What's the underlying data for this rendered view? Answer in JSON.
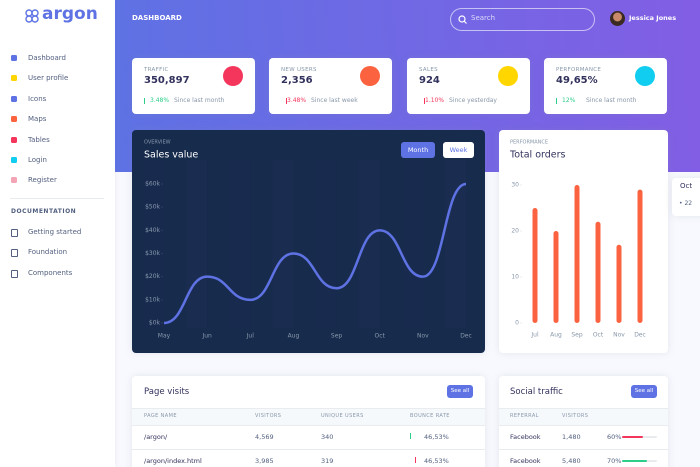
{
  "sidebar": {
    "brand": "argon",
    "nav": [
      "Dashboard",
      "User profile",
      "Icons",
      "Maps",
      "Tables",
      "Login",
      "Register"
    ],
    "section": "DOCUMENTATION",
    "docs": [
      "Getting started",
      "Foundation",
      "Components"
    ]
  },
  "header": {
    "title": "DASHBOARD",
    "search_placeholder": "Search",
    "user": "Jessica Jones"
  },
  "stats": [
    {
      "label": "TRAFFIC",
      "value": "350,897",
      "change": "3.48%",
      "period": "Since last month"
    },
    {
      "label": "NEW USERS",
      "value": "2,356",
      "change": "3.48%",
      "period": "Since last week"
    },
    {
      "label": "SALES",
      "value": "924",
      "change": "1.10%",
      "period": "Since yesterday"
    },
    {
      "label": "PERFORMANCE",
      "value": "49,65%",
      "change": "12%",
      "period": "Since last month"
    }
  ],
  "chart_data": [
    {
      "type": "line",
      "overline": "OVERVIEW",
      "title": "Sales value",
      "buttons": [
        "Month",
        "Week"
      ],
      "categories": [
        "May",
        "Jun",
        "Jul",
        "Aug",
        "Sep",
        "Oct",
        "Nov",
        "Dec"
      ],
      "values": [
        0,
        20,
        10,
        30,
        15,
        40,
        20,
        60
      ],
      "color": "#5e72e4",
      "ylim": [
        0,
        60
      ],
      "yticks": [
        {
          "value": 0,
          "label": "$0k"
        },
        {
          "value": 10,
          "label": "$10k"
        },
        {
          "value": 20,
          "label": "$20k"
        },
        {
          "value": 30,
          "label": "$30k"
        },
        {
          "value": 40,
          "label": "$40k"
        },
        {
          "value": 50,
          "label": "$50k"
        },
        {
          "value": 60,
          "label": "$60k"
        }
      ]
    },
    {
      "type": "bar",
      "overline": "PERFORMANCE",
      "title": "Total orders",
      "categories": [
        "Jul",
        "Aug",
        "Sep",
        "Oct",
        "Nov",
        "Dec"
      ],
      "values": [
        25,
        20,
        30,
        22,
        17,
        29
      ],
      "color": "#fb6340",
      "ylim": [
        0,
        30
      ],
      "yticks": [
        0,
        10,
        20,
        30
      ]
    }
  ],
  "page_visits": {
    "title": "Page visits",
    "button": "See all",
    "columns": [
      "PAGE NAME",
      "VISITORS",
      "UNIQUE USERS",
      "BOUNCE RATE"
    ],
    "rows": [
      [
        "/argon/",
        "4,569",
        "340",
        "46,53%"
      ],
      [
        "/argon/index.html",
        "3,985",
        "319",
        "46,53%"
      ]
    ]
  },
  "social_traffic": {
    "title": "Social traffic",
    "button": "See all",
    "columns": [
      "REFERRAL",
      "VISITORS"
    ],
    "rows": [
      {
        "name": "Facebook",
        "visitors": "1,480",
        "progress": {
          "value": 60,
          "label": "60%"
        },
        "color": "#f5365c"
      },
      {
        "name": "Facebook",
        "visitors": "5,480",
        "progress": {
          "value": 70,
          "label": "70%"
        },
        "color": "#2dce89"
      }
    ]
  }
}
